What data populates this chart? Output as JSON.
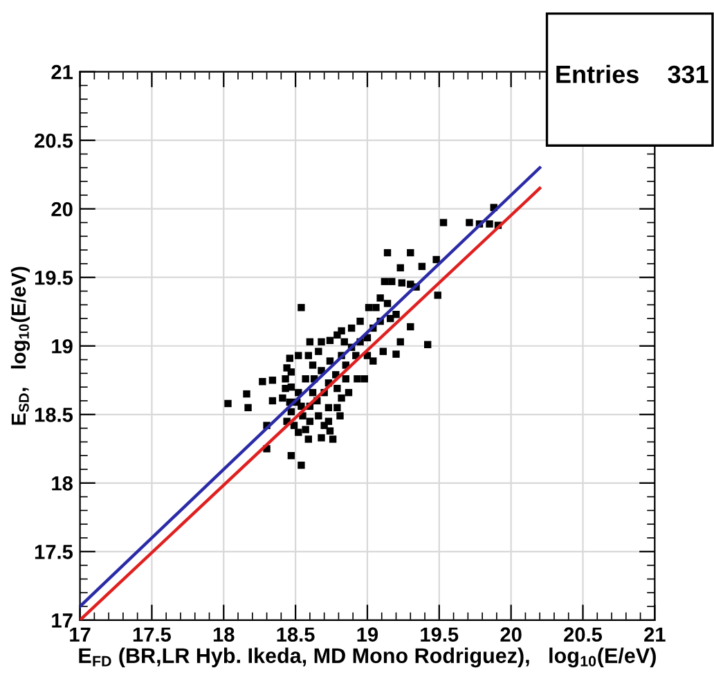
{
  "chart_data": {
    "type": "scatter",
    "xlabel": "E$_{FD}$ (BR,LR Hyb. Ikeda, MD Mono Rodriguez),   log$_{10}$(E/eV)",
    "ylabel": "E$_{SD}$,   log$_{10}$(E/eV)",
    "annotations": [
      "Entries    331"
    ],
    "xlim": [
      17,
      21
    ],
    "ylim": [
      17,
      21
    ],
    "xticks": [
      17,
      17.5,
      18,
      18.5,
      19,
      19.5,
      20,
      20.5,
      21
    ],
    "yticks": [
      17,
      17.5,
      18,
      18.5,
      19,
      19.5,
      20,
      20.5,
      21
    ],
    "grid": true,
    "marker": "square",
    "series": [
      {
        "color": "#000000",
        "x": [
          18.03,
          18.16,
          18.17,
          18.27,
          18.34,
          18.34,
          18.3,
          18.3,
          18.47,
          18.54,
          18.54,
          18.59,
          18.68,
          18.76,
          19.14,
          19.3,
          19.23,
          19.38,
          19.48,
          19.53,
          19.71,
          19.78,
          19.85,
          19.91,
          19.88,
          19.49,
          19.42,
          19.3,
          19.23,
          19.2,
          19.11,
          19.04,
          18.98,
          18.93,
          18.85,
          18.87,
          18.82,
          18.81,
          18.73,
          18.74,
          19.12,
          19.17,
          19.24,
          19.3,
          19.34,
          19.09,
          19.06,
          19.01,
          19.14,
          19.2,
          18.95,
          18.89,
          18.82,
          18.79,
          18.74,
          18.68,
          18.66,
          18.6,
          18.59,
          18.52,
          18.46,
          18.44,
          18.47,
          18.43,
          18.47,
          18.52,
          18.46,
          18.47,
          18.44,
          18.49,
          18.52,
          18.55,
          18.6,
          18.65,
          18.7,
          18.73,
          18.78,
          18.63,
          18.57,
          18.68,
          18.74,
          18.82,
          18.89,
          18.95,
          19.0,
          19.04,
          19.09,
          19.16,
          18.79,
          18.79,
          18.73,
          18.66,
          18.6,
          18.54,
          18.51,
          18.7,
          18.57,
          18.41,
          18.43,
          18.92,
          19.0,
          18.85,
          18.62,
          18.62,
          18.84
        ],
        "values": [
          18.58,
          18.65,
          18.55,
          18.74,
          18.75,
          18.6,
          18.42,
          18.25,
          18.2,
          18.13,
          19.28,
          18.32,
          18.33,
          18.32,
          19.68,
          19.68,
          19.57,
          19.58,
          19.63,
          19.9,
          19.9,
          19.89,
          19.89,
          19.88,
          20.01,
          19.37,
          19.01,
          19.14,
          19.03,
          18.94,
          18.96,
          18.89,
          18.76,
          18.76,
          18.76,
          18.66,
          18.62,
          18.49,
          18.45,
          18.38,
          19.47,
          19.47,
          19.46,
          19.45,
          19.43,
          19.35,
          19.28,
          19.28,
          19.31,
          19.23,
          19.18,
          19.13,
          19.11,
          19.08,
          19.04,
          19.03,
          18.96,
          19.03,
          18.93,
          18.93,
          18.91,
          18.84,
          18.81,
          18.76,
          18.7,
          18.66,
          18.59,
          18.52,
          18.45,
          18.42,
          18.37,
          18.49,
          18.56,
          18.6,
          18.66,
          18.73,
          18.79,
          18.76,
          18.76,
          18.82,
          18.89,
          18.93,
          18.99,
          19.03,
          19.06,
          19.13,
          19.18,
          19.2,
          18.55,
          18.69,
          18.55,
          18.49,
          18.45,
          18.56,
          18.59,
          18.42,
          18.39,
          18.62,
          18.69,
          18.93,
          18.93,
          18.86,
          18.86,
          18.66,
          19.03
        ]
      },
      {
        "type": "line",
        "color": "#2b2ba8",
        "marker": "none",
        "x": [
          17,
          20.2
        ],
        "values": [
          17.1,
          20.3
        ]
      },
      {
        "type": "line",
        "color": "#e02020",
        "marker": "none",
        "x": [
          17,
          20.2
        ],
        "values": [
          17.0,
          20.15
        ]
      }
    ]
  }
}
